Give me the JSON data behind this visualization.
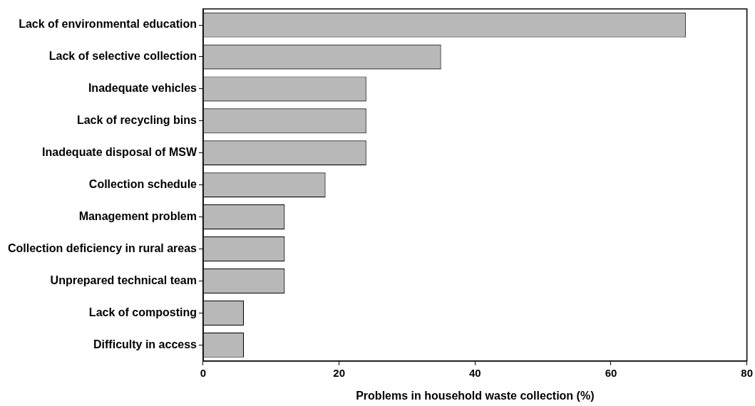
{
  "chart_data": {
    "type": "bar",
    "orientation": "horizontal",
    "xlabel": "Problems in household waste collection (%)",
    "categories": [
      "Lack of environmental education",
      "Lack of selective collection",
      "Inadequate vehicles",
      "Lack of recycling bins",
      "Inadequate disposal of MSW",
      "Collection schedule",
      "Management problem",
      "Collection deficiency in rural areas",
      "Unprepared technical team",
      "Lack of composting",
      "Difficulty in access"
    ],
    "values": [
      71,
      35,
      24,
      24,
      24,
      18,
      12,
      12,
      12,
      6,
      6
    ],
    "color": "#b8b8b8",
    "xlim": [
      0,
      80
    ],
    "xticks": [
      0,
      20,
      40,
      60,
      80
    ],
    "grid": false,
    "legend": false
  }
}
